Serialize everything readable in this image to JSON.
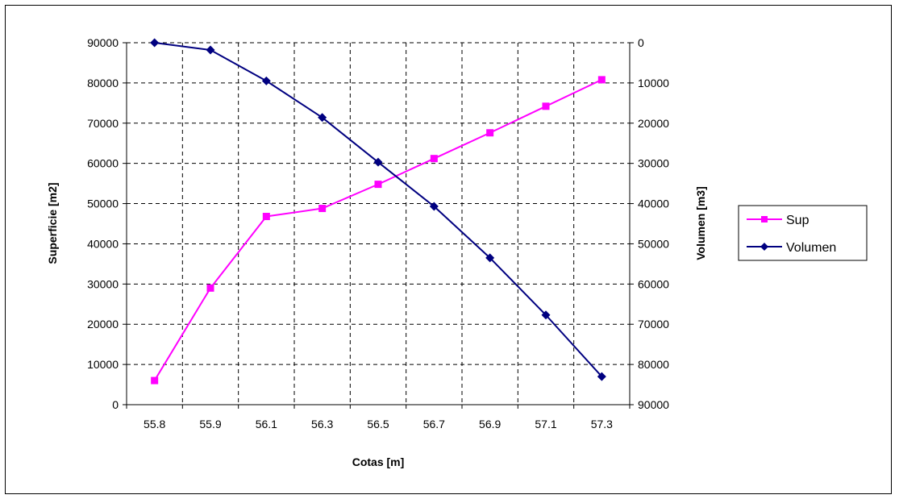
{
  "chart_data": {
    "type": "line",
    "xlabel": "Cotas [m]",
    "ylabel_left": "Superficie [m2]",
    "ylabel_right": "Volumen [m3]",
    "categories": [
      "55.8",
      "55.9",
      "56.1",
      "56.3",
      "56.5",
      "56.7",
      "56.9",
      "57.1",
      "57.3"
    ],
    "y_left": {
      "min": 0,
      "max": 90000,
      "step": 10000,
      "reversed": false
    },
    "y_right": {
      "min": 0,
      "max": 90000,
      "step": 10000,
      "reversed": true
    },
    "grid": true,
    "legend_position": "right",
    "series": [
      {
        "name": "Sup",
        "axis": "left",
        "color": "#FF00FF",
        "marker": "square",
        "values": [
          6000,
          29000,
          46800,
          48800,
          54800,
          61200,
          67600,
          74200,
          80800
        ]
      },
      {
        "name": "Volumen",
        "axis": "right",
        "color": "#000080",
        "marker": "diamond",
        "values": [
          0,
          1800,
          9500,
          18600,
          29700,
          40700,
          53500,
          67700,
          83000
        ]
      }
    ]
  }
}
